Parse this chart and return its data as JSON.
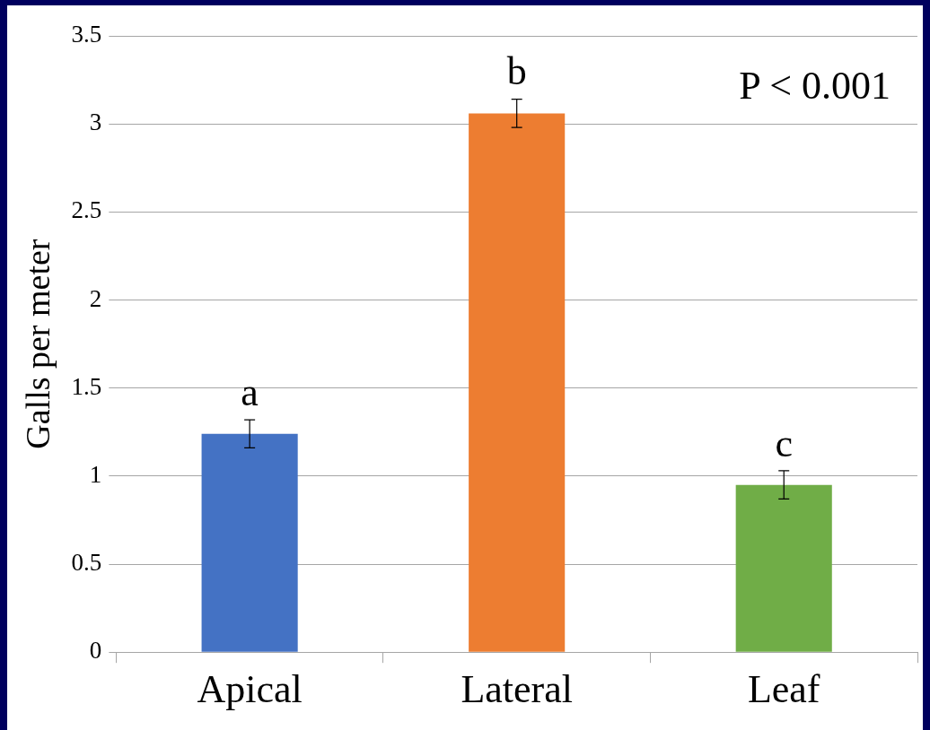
{
  "chart_data": {
    "type": "bar",
    "ylabel": "Galls per meter",
    "categories": [
      "Apical",
      "Lateral",
      "Leaf"
    ],
    "values": [
      1.24,
      3.06,
      0.95
    ],
    "colors": [
      "#4472c4",
      "#ed7d31",
      "#70ad47"
    ],
    "errors": [
      0.08,
      0.08,
      0.08
    ],
    "ylim": [
      0,
      3.5
    ],
    "yticks": [
      0,
      0.5,
      1,
      1.5,
      2,
      2.5,
      3,
      3.5
    ],
    "grid": "y",
    "annotations": [
      {
        "text": "a",
        "x": "Apical",
        "y": 1.32
      },
      {
        "text": "b",
        "x": "Lateral",
        "y": 3.14
      },
      {
        "text": "c",
        "x": "Leaf",
        "y": 1.03
      },
      "P < 0.001"
    ]
  }
}
